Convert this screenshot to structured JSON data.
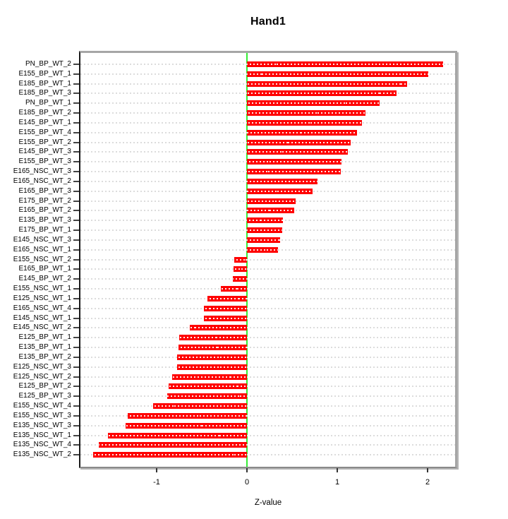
{
  "page": {
    "background": "#ffffff"
  },
  "chart_data": {
    "type": "bar",
    "orientation": "horizontal",
    "title": "Hand1",
    "xlabel": "Z-value",
    "ylabel": "",
    "xlim": [
      -1.85,
      2.33
    ],
    "xticks": [
      -1,
      0,
      1,
      2
    ],
    "xtick_labels": [
      "-1",
      "0",
      "1",
      "2"
    ],
    "grid": "dashed-row-lines",
    "legend_position": "none",
    "bar_color": "#ff0000",
    "bar_stripe_color": "#ffffff",
    "zero_line_color": "#35ee35",
    "grid_color": "#dcdcdc",
    "categories": [
      "PN_BP_WT_2",
      "E155_BP_WT_1",
      "E185_BP_WT_1",
      "E185_BP_WT_3",
      "PN_BP_WT_1",
      "E185_BP_WT_2",
      "E145_BP_WT_1",
      "E155_BP_WT_4",
      "E155_BP_WT_2",
      "E145_BP_WT_3",
      "E155_BP_WT_3",
      "E165_NSC_WT_3",
      "E165_NSC_WT_2",
      "E165_BP_WT_3",
      "E175_BP_WT_2",
      "E165_BP_WT_2",
      "E135_BP_WT_3",
      "E175_BP_WT_1",
      "E145_NSC_WT_3",
      "E165_NSC_WT_1",
      "E155_NSC_WT_2",
      "E165_BP_WT_1",
      "E145_BP_WT_2",
      "E155_NSC_WT_1",
      "E125_NSC_WT_1",
      "E165_NSC_WT_4",
      "E145_NSC_WT_1",
      "E145_NSC_WT_2",
      "E125_BP_WT_1",
      "E135_BP_WT_1",
      "E135_BP_WT_2",
      "E125_NSC_WT_3",
      "E125_NSC_WT_2",
      "E125_BP_WT_2",
      "E125_BP_WT_3",
      "E155_NSC_WT_4",
      "E155_NSC_WT_3",
      "E135_NSC_WT_3",
      "E135_NSC_WT_1",
      "E135_NSC_WT_4",
      "E135_NSC_WT_2"
    ],
    "values": [
      2.17,
      2.01,
      1.77,
      1.66,
      1.47,
      1.31,
      1.27,
      1.22,
      1.15,
      1.12,
      1.05,
      1.04,
      0.78,
      0.73,
      0.54,
      0.52,
      0.4,
      0.39,
      0.37,
      0.34,
      -0.14,
      -0.15,
      -0.16,
      -0.29,
      -0.44,
      -0.48,
      -0.48,
      -0.63,
      -0.75,
      -0.76,
      -0.77,
      -0.77,
      -0.83,
      -0.87,
      -0.88,
      -1.04,
      -1.32,
      -1.34,
      -1.54,
      -1.64,
      -1.7
    ]
  }
}
